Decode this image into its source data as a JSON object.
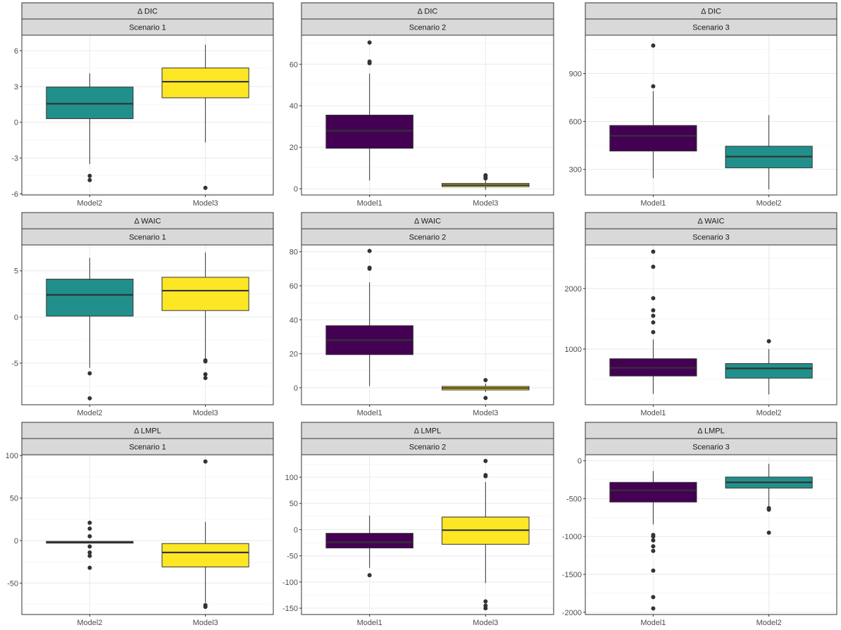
{
  "colors": {
    "teal": "#21908C",
    "yellow": "#FDE725",
    "purple": "#440154",
    "strip_fill": "#D9D9D9",
    "panel_border": "#333333",
    "grid_major": "#EBEBEB",
    "text": "#4D4D4D"
  },
  "chart_data": [
    {
      "type": "box",
      "metric": "Δ DIC",
      "scenario": "Scenario 1",
      "ylim": [
        -6.1,
        7.3
      ],
      "y_ticks": [
        -6,
        -3,
        0,
        3,
        6
      ],
      "y_tick_labels": [
        "-6",
        "-3",
        "0",
        "3",
        "6"
      ],
      "categories": [
        "Model2",
        "Model3"
      ],
      "boxes": [
        {
          "name": "Model2",
          "color": "#21908C",
          "min": -3.5,
          "q1": 0.3,
          "median": 1.55,
          "q3": 2.95,
          "max": 4.1,
          "outliers": [
            -4.5,
            -4.85
          ]
        },
        {
          "name": "Model3",
          "color": "#FDE725",
          "min": -1.7,
          "q1": 2.05,
          "median": 3.4,
          "q3": 4.55,
          "max": 6.5,
          "outliers": [
            -5.5
          ]
        }
      ]
    },
    {
      "type": "box",
      "metric": "Δ DIC",
      "scenario": "Scenario 2",
      "ylim": [
        -3,
        74
      ],
      "y_ticks": [
        0,
        20,
        40,
        60
      ],
      "y_tick_labels": [
        "0",
        "20",
        "40",
        "60"
      ],
      "categories": [
        "Model1",
        "Model3"
      ],
      "boxes": [
        {
          "name": "Model1",
          "color": "#440154",
          "min": 4,
          "q1": 19.5,
          "median": 28,
          "q3": 35.5,
          "max": 55.5,
          "outliers": [
            60.5,
            61.3,
            70.5
          ]
        },
        {
          "name": "Model3",
          "color": "#FDE725",
          "min": -0.5,
          "q1": 1,
          "median": 1.8,
          "q3": 2.6,
          "max": 4.2,
          "outliers": [
            5,
            5.8,
            6.5
          ]
        }
      ]
    },
    {
      "type": "box",
      "metric": "Δ DIC",
      "scenario": "Scenario 3",
      "ylim": [
        140,
        1140
      ],
      "y_ticks": [
        300,
        600,
        900
      ],
      "y_tick_labels": [
        "300",
        "600",
        "900"
      ],
      "categories": [
        "Model1",
        "Model2"
      ],
      "boxes": [
        {
          "name": "Model1",
          "color": "#440154",
          "min": 245,
          "q1": 415,
          "median": 510,
          "q3": 575,
          "max": 790,
          "outliers": [
            820,
            1075
          ]
        },
        {
          "name": "Model2",
          "color": "#21908C",
          "min": 175,
          "q1": 310,
          "median": 380,
          "q3": 445,
          "max": 640,
          "outliers": []
        }
      ]
    },
    {
      "type": "box",
      "metric": "Δ WAIC",
      "scenario": "Scenario 1",
      "ylim": [
        -9.5,
        7.8
      ],
      "y_ticks": [
        -5,
        0,
        5
      ],
      "y_tick_labels": [
        "-5",
        "0",
        "5"
      ],
      "categories": [
        "Model2",
        "Model3"
      ],
      "boxes": [
        {
          "name": "Model2",
          "color": "#21908C",
          "min": -5.5,
          "q1": 0.1,
          "median": 2.4,
          "q3": 4.1,
          "max": 6.4,
          "outliers": [
            -6.1,
            -8.8
          ]
        },
        {
          "name": "Model3",
          "color": "#FDE725",
          "min": -4.6,
          "q1": 0.7,
          "median": 2.85,
          "q3": 4.3,
          "max": 7.0,
          "outliers": [
            -4.7,
            -4.8,
            -6.2,
            -6.6
          ]
        }
      ]
    },
    {
      "type": "box",
      "metric": "Δ WAIC",
      "scenario": "Scenario 2",
      "ylim": [
        -10,
        84
      ],
      "y_ticks": [
        0,
        20,
        40,
        60,
        80
      ],
      "y_tick_labels": [
        "0",
        "20",
        "40",
        "60",
        "80"
      ],
      "categories": [
        "Model1",
        "Model3"
      ],
      "boxes": [
        {
          "name": "Model1",
          "color": "#440154",
          "min": 1,
          "q1": 19.5,
          "median": 28,
          "q3": 36.5,
          "max": 62,
          "outliers": [
            70,
            70.6,
            80.5
          ]
        },
        {
          "name": "Model3",
          "color": "#FDE725",
          "min": -2.5,
          "q1": -1.3,
          "median": -0.2,
          "q3": 0.8,
          "max": 2.5,
          "outliers": [
            4.5,
            -6
          ]
        }
      ]
    },
    {
      "type": "box",
      "metric": "Δ WAIC",
      "scenario": "Scenario 3",
      "ylim": [
        80,
        2720
      ],
      "y_ticks": [
        1000,
        2000
      ],
      "y_tick_labels": [
        "1000",
        "2000"
      ],
      "categories": [
        "Model1",
        "Model2"
      ],
      "boxes": [
        {
          "name": "Model1",
          "color": "#440154",
          "min": 260,
          "q1": 555,
          "median": 690,
          "q3": 840,
          "max": 1160,
          "outliers": [
            1280,
            1440,
            1550,
            1640,
            1840,
            2360,
            2610
          ]
        },
        {
          "name": "Model2",
          "color": "#21908C",
          "min": 250,
          "q1": 520,
          "median": 680,
          "q3": 760,
          "max": 1000,
          "outliers": [
            1130
          ]
        }
      ]
    },
    {
      "type": "box",
      "metric": "Δ LMPL",
      "scenario": "Scenario 1",
      "ylim": [
        -87,
        101
      ],
      "y_ticks": [
        -50,
        0,
        50,
        100
      ],
      "y_tick_labels": [
        "-50",
        "0",
        "50",
        "100"
      ],
      "categories": [
        "Model2",
        "Model3"
      ],
      "boxes": [
        {
          "name": "Model2",
          "color": "#21908C",
          "min": -3,
          "q1": -3,
          "median": -2,
          "q3": -1,
          "max": -1,
          "outliers": [
            21,
            14,
            5,
            -7,
            -14,
            -18,
            -32
          ]
        },
        {
          "name": "Model3",
          "color": "#FDE725",
          "min": -73,
          "q1": -31,
          "median": -14,
          "q3": -3.5,
          "max": 22,
          "outliers": [
            93,
            -76,
            -78
          ]
        }
      ]
    },
    {
      "type": "box",
      "metric": "Δ LMPL",
      "scenario": "Scenario 2",
      "ylim": [
        -162,
        143
      ],
      "y_ticks": [
        -150,
        -100,
        -50,
        0,
        50,
        100
      ],
      "y_tick_labels": [
        "-150",
        "-100",
        "-50",
        "0",
        "50",
        "100"
      ],
      "categories": [
        "Model1",
        "Model3"
      ],
      "boxes": [
        {
          "name": "Model1",
          "color": "#440154",
          "min": -73,
          "q1": -35,
          "median": -24,
          "q3": -7,
          "max": 27,
          "outliers": [
            -87
          ]
        },
        {
          "name": "Model3",
          "color": "#FDE725",
          "min": -102,
          "q1": -28,
          "median": -1,
          "q3": 24,
          "max": 91,
          "outliers": [
            131,
            104,
            102,
            -137,
            -145,
            -150
          ]
        }
      ]
    },
    {
      "type": "box",
      "metric": "Δ LMPL",
      "scenario": "Scenario 3",
      "ylim": [
        -2030,
        80
      ],
      "y_ticks": [
        -2000,
        -1500,
        -1000,
        -500,
        0
      ],
      "y_tick_labels": [
        "-2000",
        "-1500",
        "-1000",
        "-500",
        "0"
      ],
      "categories": [
        "Model1",
        "Model2"
      ],
      "boxes": [
        {
          "name": "Model1",
          "color": "#440154",
          "min": -840,
          "q1": -545,
          "median": -390,
          "q3": -285,
          "max": -135,
          "outliers": [
            -980,
            -1000,
            -1050,
            -1130,
            -1190,
            -1450,
            -1800,
            -1950
          ]
        },
        {
          "name": "Model2",
          "color": "#21908C",
          "min": -600,
          "q1": -360,
          "median": -285,
          "q3": -215,
          "max": -40,
          "outliers": [
            -625,
            -645,
            -950
          ]
        }
      ]
    }
  ]
}
